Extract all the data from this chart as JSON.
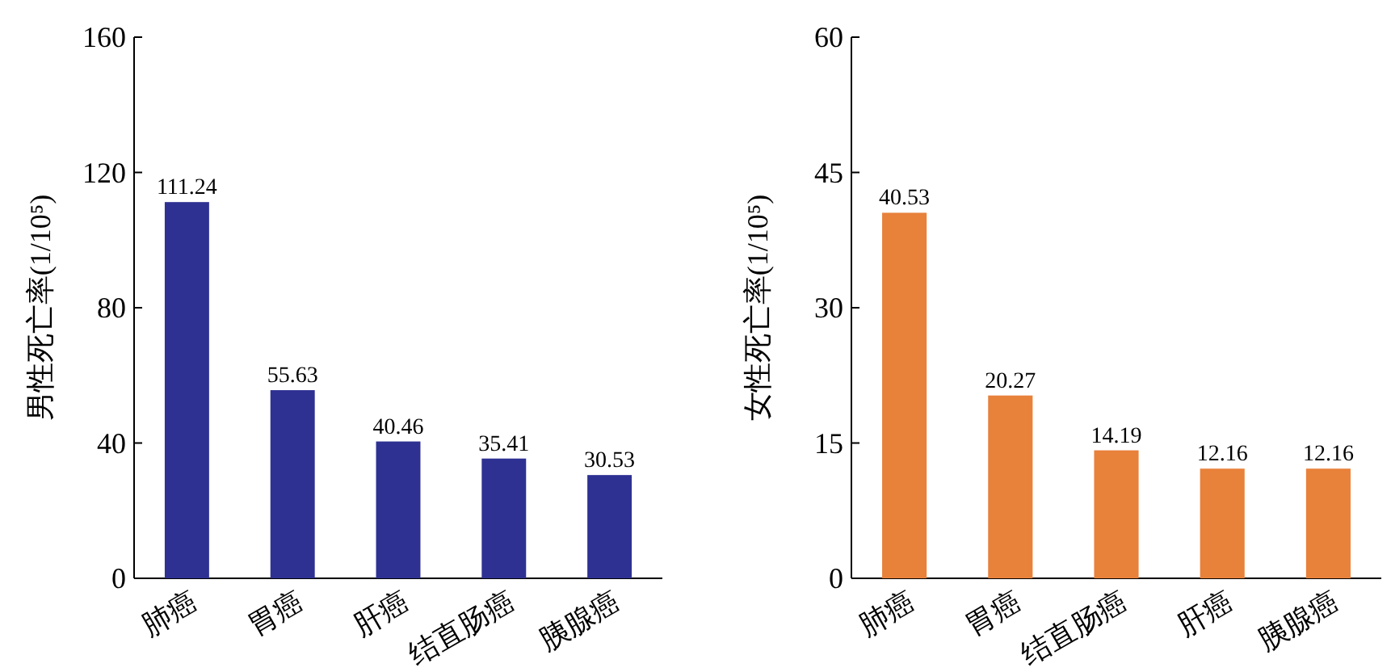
{
  "chart_data": [
    {
      "type": "bar",
      "ylabel": "男性死亡率(1/10⁵)",
      "categories": [
        "肺癌",
        "胃癌",
        "肝癌",
        "结直肠癌",
        "胰腺癌"
      ],
      "values": [
        111.24,
        55.63,
        40.46,
        35.41,
        30.53
      ],
      "color": "#2e3192",
      "ylim": [
        0,
        160
      ],
      "yticks": [
        0,
        40,
        80,
        120,
        160
      ],
      "data_labels": true
    },
    {
      "type": "bar",
      "ylabel": "女性死亡率(1/10⁵)",
      "categories": [
        "肺癌",
        "胃癌",
        "结直肠癌",
        "肝癌",
        "胰腺癌"
      ],
      "values": [
        40.53,
        20.27,
        14.19,
        12.16,
        12.16
      ],
      "color": "#e8813a",
      "ylim": [
        0,
        60
      ],
      "yticks": [
        0,
        15,
        30,
        45,
        60
      ],
      "data_labels": true
    }
  ]
}
